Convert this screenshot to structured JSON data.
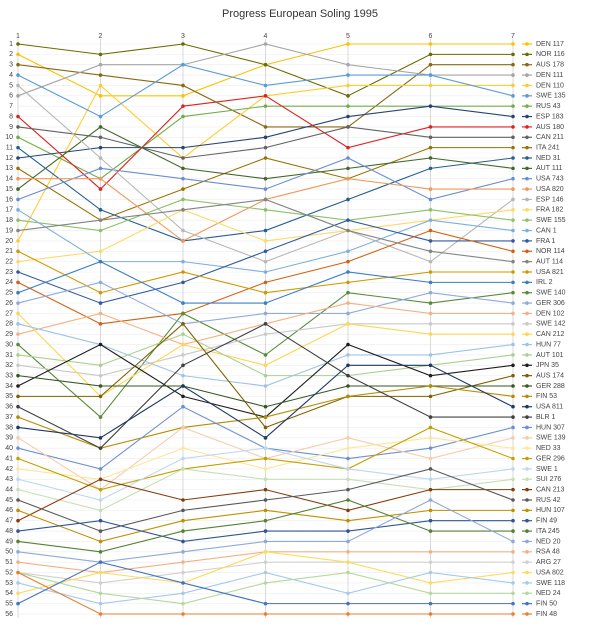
{
  "chart_data": {
    "type": "line",
    "title": "Progress European Soling 1995",
    "x": [
      1,
      2,
      3,
      4,
      5,
      6,
      7
    ],
    "xlim": [
      1,
      7
    ],
    "xticks": [
      1,
      2,
      3,
      4,
      5,
      6,
      7
    ],
    "ylim": [
      1,
      56
    ],
    "y_inverted": true,
    "yticks": [
      1,
      2,
      3,
      4,
      5,
      6,
      7,
      8,
      9,
      10,
      11,
      12,
      13,
      14,
      15,
      16,
      17,
      18,
      19,
      20,
      21,
      22,
      23,
      24,
      25,
      26,
      27,
      28,
      29,
      30,
      31,
      32,
      33,
      34,
      35,
      36,
      37,
      38,
      39,
      40,
      41,
      42,
      43,
      44,
      45,
      46,
      47,
      48,
      49,
      50,
      51,
      52,
      53,
      54,
      55,
      56
    ],
    "grid": true,
    "legend": "right",
    "series": [
      {
        "name": "DEN 117",
        "color": "#ffc000",
        "values": [
          2,
          6,
          6,
          3,
          1,
          1,
          1
        ]
      },
      {
        "name": "NOR 116",
        "color": "#6b6b00",
        "values": [
          1,
          2,
          1,
          3,
          6,
          2,
          2
        ]
      },
      {
        "name": "AUS 178",
        "color": "#8b6914",
        "values": [
          3,
          4,
          5,
          9,
          9,
          3,
          3
        ]
      },
      {
        "name": "DEN 111",
        "color": "#a5a5a5",
        "values": [
          6,
          3,
          3,
          1,
          3,
          4,
          4
        ]
      },
      {
        "name": "DEN 110",
        "color": "#ffcd33",
        "values": [
          20,
          5,
          12,
          6,
          5,
          5,
          5
        ]
      },
      {
        "name": "SWE 135",
        "color": "#5b9bd5",
        "values": [
          4,
          8,
          3,
          5,
          4,
          4,
          6
        ]
      },
      {
        "name": "RUS 43",
        "color": "#70ad47",
        "values": [
          10,
          14,
          8,
          7,
          7,
          7,
          7
        ]
      },
      {
        "name": "ESP 183",
        "color": "#264478",
        "values": [
          12,
          11,
          11,
          10,
          8,
          7,
          8
        ]
      },
      {
        "name": "AUS 180",
        "color": "#e02020",
        "values": [
          8,
          15,
          7,
          6,
          11,
          9,
          9
        ]
      },
      {
        "name": "CAN 211",
        "color": "#636363",
        "values": [
          9,
          10,
          12,
          11,
          9,
          10,
          10
        ]
      },
      {
        "name": "ITA 241",
        "color": "#997300",
        "values": [
          13,
          18,
          15,
          12,
          14,
          11,
          11
        ]
      },
      {
        "name": "NED 31",
        "color": "#255e91",
        "values": [
          11,
          17,
          20,
          19,
          16,
          13,
          12
        ]
      },
      {
        "name": "AUT 111",
        "color": "#43682b",
        "values": [
          15,
          9,
          13,
          14,
          13,
          12,
          13
        ]
      },
      {
        "name": "USA 743",
        "color": "#698ed0",
        "values": [
          16,
          13,
          14,
          15,
          12,
          16,
          14
        ]
      },
      {
        "name": "USA 820",
        "color": "#f1975a",
        "values": [
          14,
          14,
          20,
          16,
          14,
          15,
          15
        ]
      },
      {
        "name": "ESP 146",
        "color": "#b7b7b7",
        "values": [
          5,
          12,
          19,
          22,
          19,
          22,
          16
        ]
      },
      {
        "name": "FRA 182",
        "color": "#ffd966",
        "values": [
          22,
          21,
          17,
          20,
          19,
          18,
          17
        ]
      },
      {
        "name": "SWE 155",
        "color": "#8cc168",
        "values": [
          18,
          19,
          16,
          17,
          18,
          17,
          18
        ]
      },
      {
        "name": "CAN 1",
        "color": "#7cafdd",
        "values": [
          17,
          22,
          22,
          23,
          21,
          18,
          19
        ]
      },
      {
        "name": "FRA 1",
        "color": "#335aa1",
        "values": [
          23,
          26,
          24,
          21,
          18,
          20,
          20
        ]
      },
      {
        "name": "NOR 114",
        "color": "#d26012",
        "values": [
          24,
          28,
          27,
          24,
          22,
          19,
          21
        ]
      },
      {
        "name": "AUT 114",
        "color": "#848484",
        "values": [
          19,
          18,
          17,
          16,
          19,
          21,
          22
        ]
      },
      {
        "name": "USA 821",
        "color": "#cc9a00",
        "values": [
          21,
          25,
          23,
          25,
          24,
          23,
          23
        ]
      },
      {
        "name": "IRL 2",
        "color": "#3c7dc4",
        "values": [
          25,
          22,
          26,
          26,
          23,
          24,
          24
        ]
      },
      {
        "name": "SWE 140",
        "color": "#5a8a39",
        "values": [
          30,
          37,
          27,
          31,
          25,
          26,
          25
        ]
      },
      {
        "name": "GER 306",
        "color": "#8faadc",
        "values": [
          26,
          24,
          28,
          27,
          27,
          25,
          26
        ]
      },
      {
        "name": "DEN 102",
        "color": "#f4b183",
        "values": [
          29,
          27,
          30,
          28,
          26,
          27,
          27
        ]
      },
      {
        "name": "SWE 142",
        "color": "#c9c9c9",
        "values": [
          32,
          33,
          31,
          29,
          28,
          28,
          28
        ]
      },
      {
        "name": "CAN 212",
        "color": "#ffd54f",
        "values": [
          27,
          35,
          30,
          32,
          28,
          29,
          29
        ]
      },
      {
        "name": "HUN 77",
        "color": "#9dc3e6",
        "values": [
          28,
          30,
          33,
          34,
          31,
          31,
          30
        ]
      },
      {
        "name": "AUT 101",
        "color": "#a9d18e",
        "values": [
          31,
          32,
          29,
          33,
          33,
          32,
          31
        ]
      },
      {
        "name": "JPN 35",
        "color": "#1f1f1f",
        "values": [
          34,
          30,
          35,
          37,
          30,
          33,
          32
        ]
      },
      {
        "name": "AUS 174",
        "color": "#7f6000",
        "values": [
          35,
          35,
          28,
          38,
          35,
          35,
          33
        ]
      },
      {
        "name": "GER 288",
        "color": "#375623",
        "values": [
          33,
          34,
          34,
          36,
          34,
          34,
          34
        ]
      },
      {
        "name": "FIN 53",
        "color": "#b58c00",
        "values": [
          37,
          40,
          38,
          37,
          35,
          34,
          35
        ]
      },
      {
        "name": "USA 811",
        "color": "#1f3864",
        "values": [
          38,
          39,
          34,
          39,
          32,
          32,
          36
        ]
      },
      {
        "name": "BLR 1",
        "color": "#404040",
        "values": [
          36,
          40,
          32,
          28,
          33,
          37,
          37
        ]
      },
      {
        "name": "HUN 307",
        "color": "#6f8fd0",
        "values": [
          40,
          42,
          36,
          40,
          41,
          40,
          38
        ]
      },
      {
        "name": "SWE 139",
        "color": "#f8cbad",
        "values": [
          39,
          44,
          38,
          41,
          39,
          41,
          39
        ]
      },
      {
        "name": "NED 33",
        "color": "#ffe699",
        "values": [
          42,
          43,
          40,
          42,
          40,
          39,
          40
        ]
      },
      {
        "name": "GER 296",
        "color": "#c5a000",
        "values": [
          41,
          44,
          42,
          41,
          42,
          38,
          41
        ]
      },
      {
        "name": "SWE 1",
        "color": "#bdd7ee",
        "values": [
          43,
          45,
          41,
          40,
          42,
          43,
          42
        ]
      },
      {
        "name": "SUI 276",
        "color": "#c5e0b4",
        "values": [
          44,
          46,
          42,
          43,
          43,
          44,
          43
        ]
      },
      {
        "name": "CAN 213",
        "color": "#843c0c",
        "values": [
          47,
          43,
          45,
          44,
          46,
          44,
          44
        ]
      },
      {
        "name": "RUS 42",
        "color": "#595959",
        "values": [
          45,
          48,
          46,
          45,
          44,
          42,
          45
        ]
      },
      {
        "name": "HUN 107",
        "color": "#bf8f00",
        "values": [
          46,
          49,
          47,
          46,
          47,
          46,
          46
        ]
      },
      {
        "name": "FIN 49",
        "color": "#2f5597",
        "values": [
          48,
          47,
          49,
          48,
          48,
          47,
          47
        ]
      },
      {
        "name": "ITA 245",
        "color": "#548235",
        "values": [
          49,
          50,
          48,
          47,
          45,
          48,
          48
        ]
      },
      {
        "name": "NED 20",
        "color": "#8ea9db",
        "values": [
          50,
          51,
          50,
          49,
          49,
          45,
          49
        ]
      },
      {
        "name": "RSA 48",
        "color": "#f4b084",
        "values": [
          51,
          52,
          51,
          50,
          50,
          50,
          50
        ]
      },
      {
        "name": "ARG 27",
        "color": "#d0d0d0",
        "values": [
          52,
          53,
          52,
          51,
          51,
          51,
          51
        ]
      },
      {
        "name": "USA 802",
        "color": "#ffda5c",
        "values": [
          54,
          52,
          53,
          50,
          51,
          53,
          52
        ]
      },
      {
        "name": "SWE 118",
        "color": "#a6c9ec",
        "values": [
          53,
          55,
          54,
          52,
          54,
          52,
          53
        ]
      },
      {
        "name": "NED 24",
        "color": "#b4d99c",
        "values": [
          52,
          54,
          55,
          53,
          52,
          54,
          54
        ]
      },
      {
        "name": "FIN 50",
        "color": "#4472c4",
        "values": [
          55,
          51,
          53,
          55,
          55,
          55,
          55
        ]
      },
      {
        "name": "FIN 48",
        "color": "#ed7d31",
        "values": [
          52,
          56,
          56,
          56,
          56,
          56,
          56
        ]
      }
    ]
  }
}
